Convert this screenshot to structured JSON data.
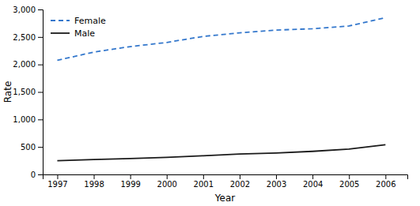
{
  "chart_data": {
    "type": "line",
    "x": [
      1997,
      1998,
      1999,
      2000,
      2001,
      2002,
      2003,
      2004,
      2005,
      2006
    ],
    "series": [
      {
        "name": "Female",
        "color": "#3377cc",
        "line_style": "dashed",
        "values": [
          2075,
          2225,
          2325,
          2400,
          2510,
          2575,
          2625,
          2650,
          2700,
          2850
        ]
      },
      {
        "name": "Male",
        "color": "#1a1a1a",
        "line_style": "solid",
        "values": [
          250,
          270,
          290,
          310,
          340,
          370,
          390,
          420,
          460,
          540
        ]
      }
    ],
    "xlabel": "Year",
    "ylabel": "Rate",
    "xlim": [
      1996.6,
      2006.6
    ],
    "xticks": [
      1997,
      1998,
      1999,
      2000,
      2001,
      2002,
      2003,
      2004,
      2005,
      2006
    ],
    "ylim": [
      0,
      3000
    ],
    "yticks": [
      0,
      500,
      {
        "value": 1000,
        "label": "1,000"
      },
      {
        "value": 1500,
        "label": "1,500"
      },
      {
        "value": 2000,
        "label": "2,000"
      },
      {
        "value": 2500,
        "label": "2,500"
      },
      {
        "value": 3000,
        "label": "3,000"
      }
    ],
    "legend": "upper left"
  }
}
